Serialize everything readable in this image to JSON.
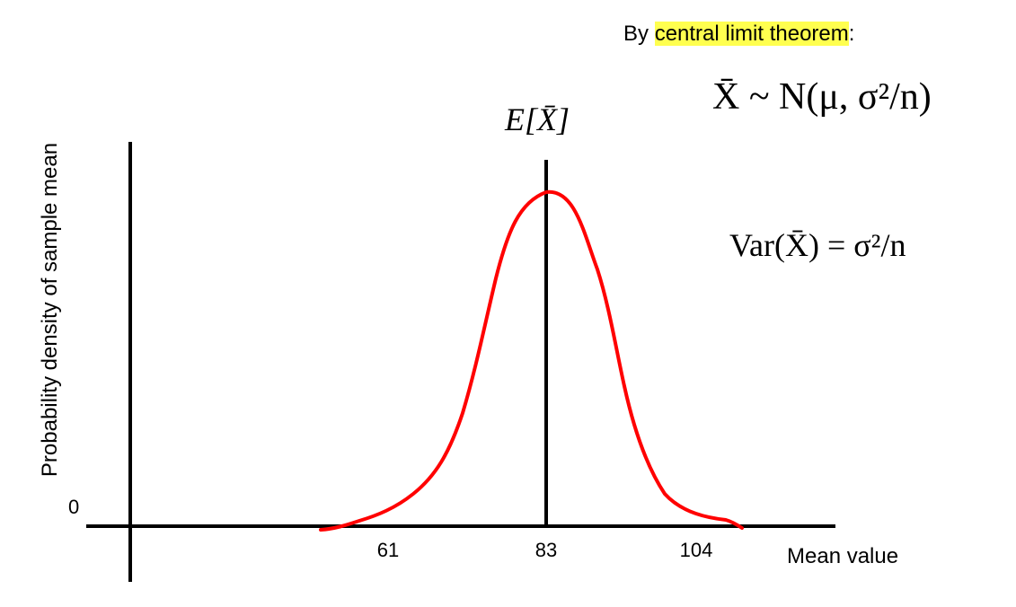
{
  "note": {
    "prefix": "By ",
    "highlight": "central limit theorem",
    "suffix": ":"
  },
  "axes": {
    "ylabel": "Probability density of sample mean",
    "origin_label": "0",
    "xlabel": "Mean value",
    "ticks": [
      "61",
      "83",
      "104"
    ]
  },
  "math": {
    "expectation": "E[X̄]",
    "clt_formula": "X̄ ~ N(μ, σ²/n)",
    "variance_formula": "Var(X̄) = σ²/n"
  },
  "colors": {
    "curve": "#ff0000",
    "highlight": "#ffff4f",
    "axis": "#000000"
  }
}
